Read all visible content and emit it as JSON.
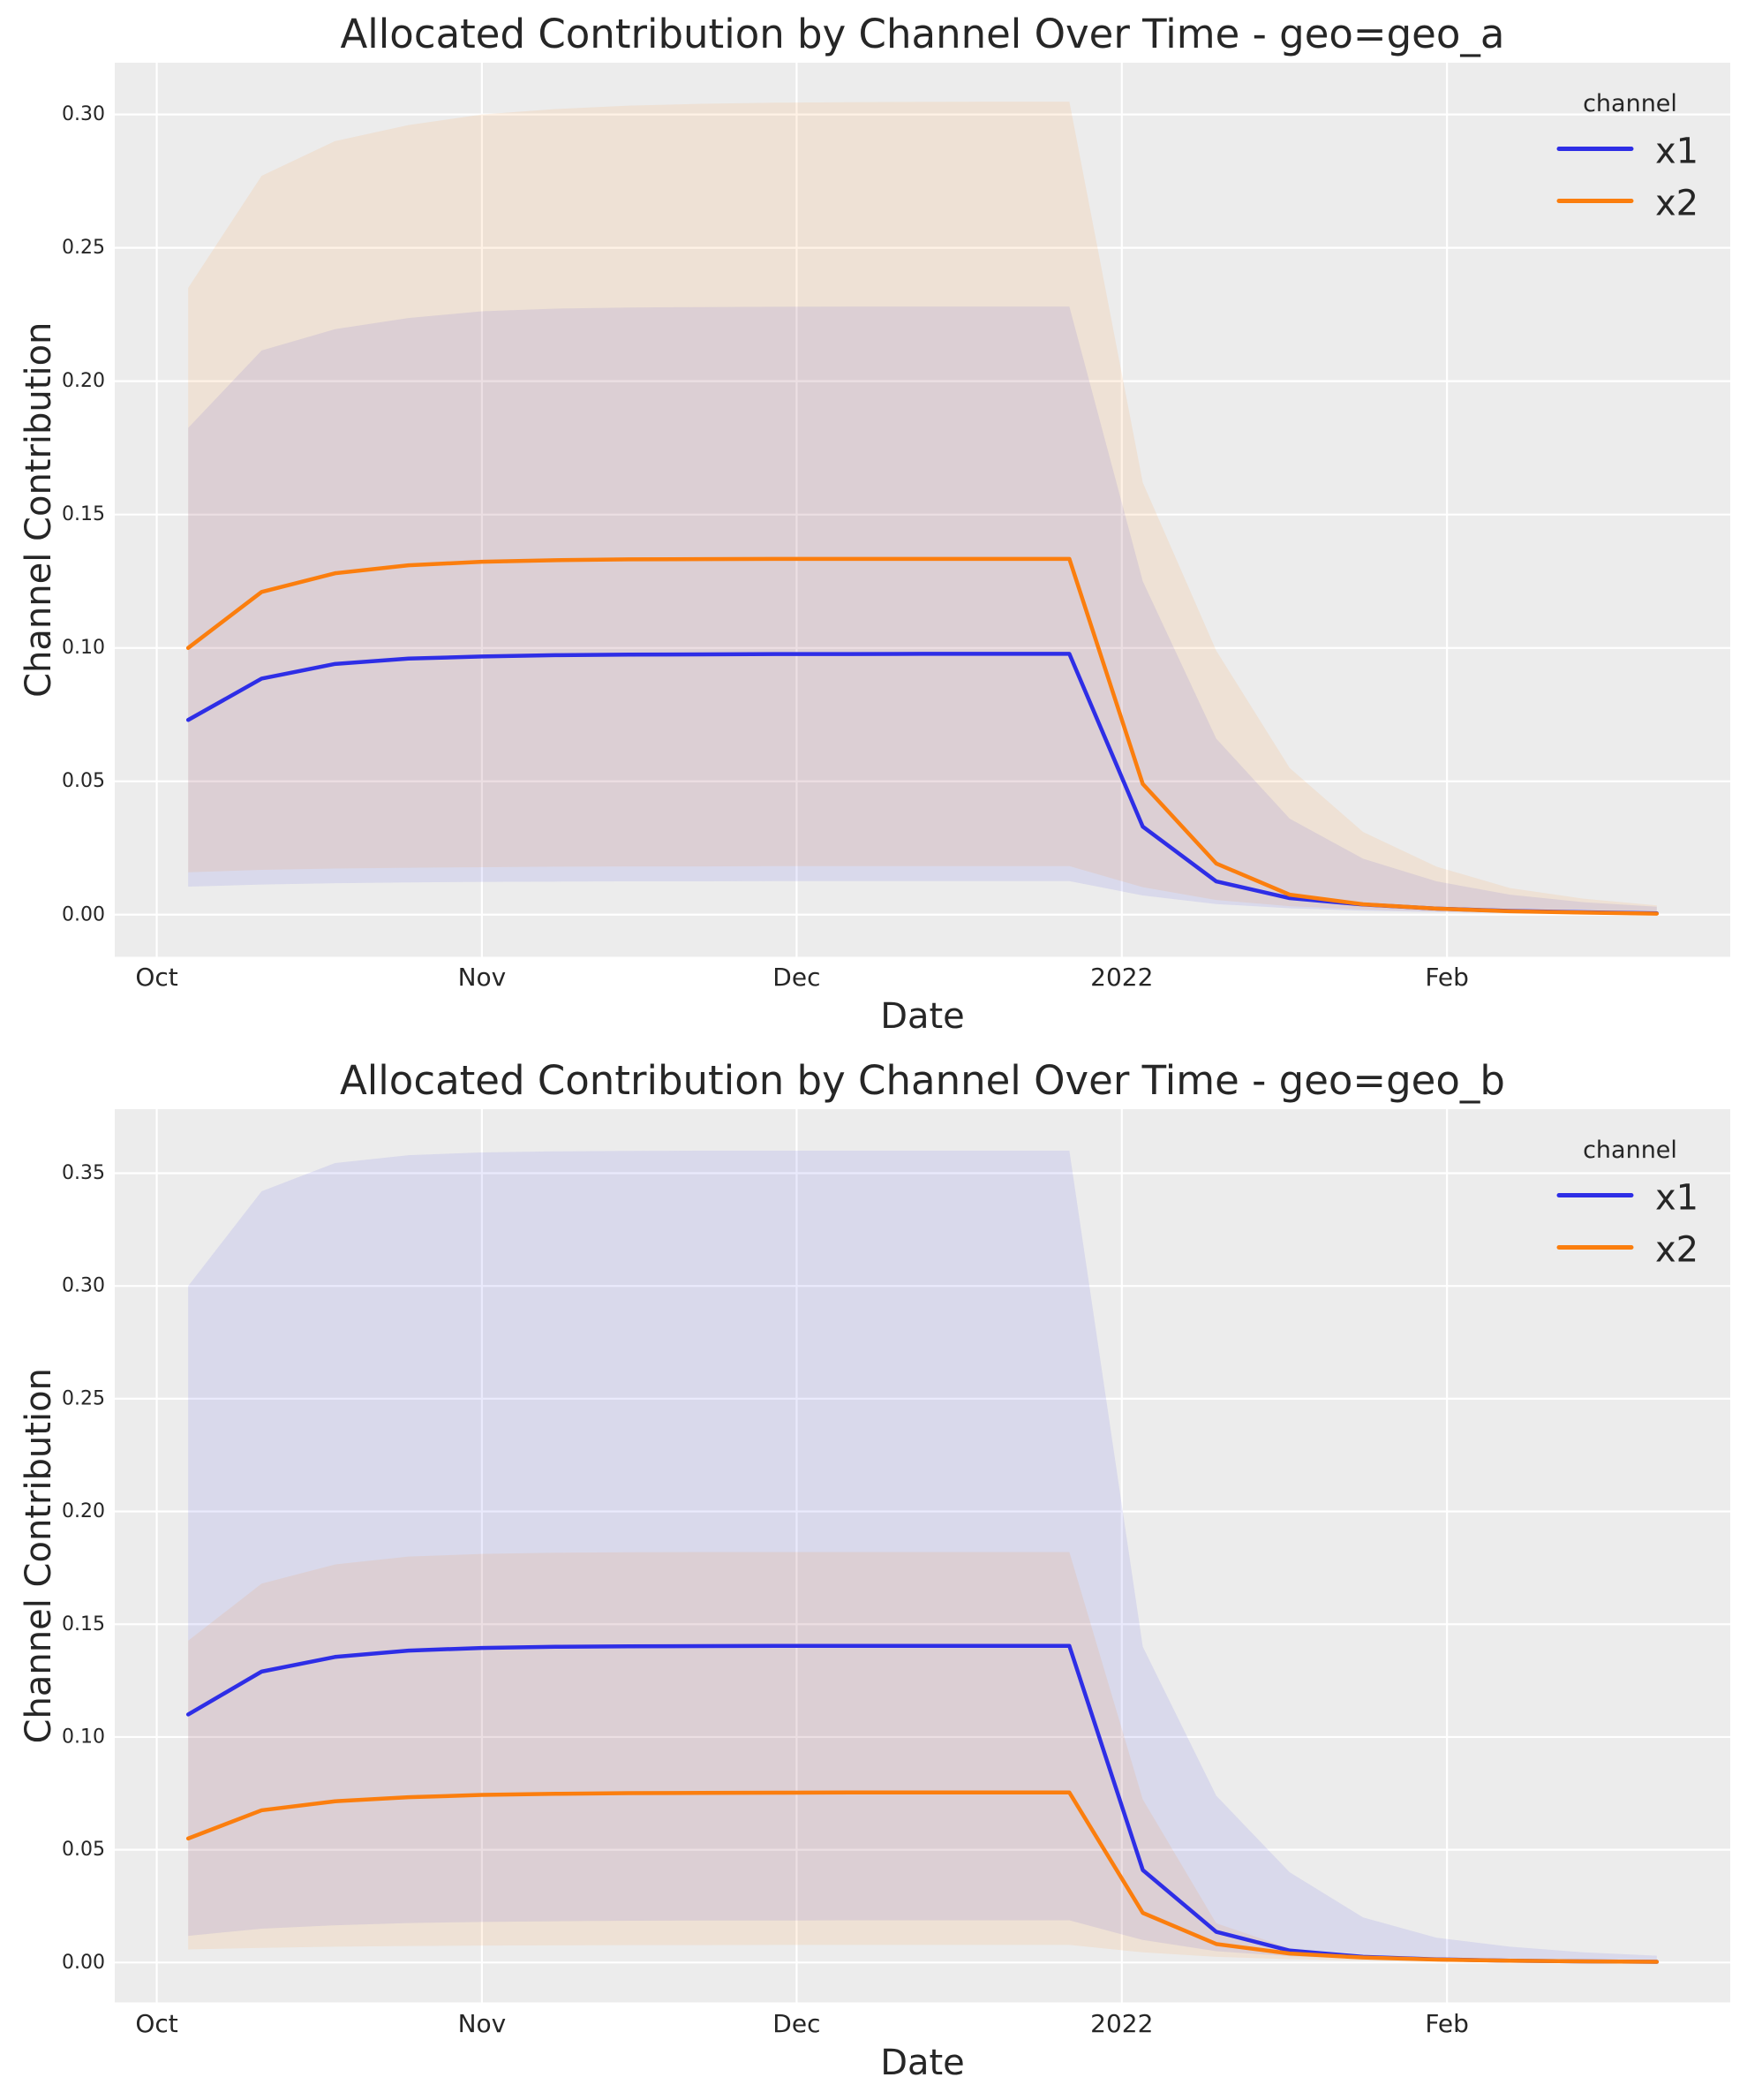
{
  "style": {
    "figure_bg": "#FFFFFF",
    "axes_bg": "#ECECEC",
    "grid_color": "#FFFFFF",
    "text_color": "#262626",
    "band_alpha": 0.1,
    "series_colors": {
      "x1": "#2E2EE6",
      "x2": "#FB7E0E"
    }
  },
  "chart_data": [
    {
      "type": "line",
      "title": "Allocated Contribution by Channel Over Time - geo=geo_a",
      "xlabel": "Date",
      "ylabel": "Channel Contribution",
      "grid": true,
      "legend": {
        "title": "channel",
        "position": "upper right"
      },
      "xlim": [
        "2021-09-27",
        "2022-02-28"
      ],
      "ylim": [
        -0.0158,
        0.3194
      ],
      "x_ticks": [
        {
          "date": "2021-10-01",
          "label": "Oct"
        },
        {
          "date": "2021-11-01",
          "label": "Nov"
        },
        {
          "date": "2021-12-01",
          "label": "Dec"
        },
        {
          "date": "2022-01-01",
          "label": "2022"
        },
        {
          "date": "2022-02-01",
          "label": "Feb"
        }
      ],
      "y_ticks": [
        {
          "value": 0.0,
          "label": "0.00"
        },
        {
          "value": 0.05,
          "label": "0.05"
        },
        {
          "value": 0.1,
          "label": "0.10"
        },
        {
          "value": 0.15,
          "label": "0.15"
        },
        {
          "value": 0.2,
          "label": "0.20"
        },
        {
          "value": 0.25,
          "label": "0.25"
        },
        {
          "value": 0.3,
          "label": "0.30"
        }
      ],
      "dates": [
        "2021-10-04",
        "2021-10-11",
        "2021-10-18",
        "2021-10-25",
        "2021-11-01",
        "2021-11-08",
        "2021-11-15",
        "2021-11-22",
        "2021-11-29",
        "2021-12-06",
        "2021-12-13",
        "2021-12-20",
        "2021-12-27",
        "2022-01-03",
        "2022-01-10",
        "2022-01-17",
        "2022-01-24",
        "2022-01-31",
        "2022-02-07",
        "2022-02-14",
        "2022-02-21"
      ],
      "series": [
        {
          "name": "x1",
          "mean": [
            0.073,
            0.0885,
            0.094,
            0.096,
            0.0968,
            0.0973,
            0.0975,
            0.0976,
            0.0977,
            0.0977,
            0.0978,
            0.0978,
            0.0978,
            0.033,
            0.0125,
            0.0062,
            0.0038,
            0.0023,
            0.0014,
            0.0009,
            0.0005
          ],
          "hdi_lower": [
            0.0105,
            0.0113,
            0.0118,
            0.0121,
            0.0123,
            0.0124,
            0.0125,
            0.0125,
            0.0126,
            0.0126,
            0.0126,
            0.0126,
            0.0126,
            0.0072,
            0.004,
            0.0024,
            0.0015,
            0.001,
            0.0006,
            0.0004,
            0.0003
          ],
          "hdi_upper": [
            0.1825,
            0.2115,
            0.2195,
            0.2237,
            0.2262,
            0.2272,
            0.2276,
            0.2278,
            0.2279,
            0.228,
            0.228,
            0.228,
            0.228,
            0.125,
            0.066,
            0.036,
            0.021,
            0.0125,
            0.0075,
            0.0047,
            0.003
          ]
        },
        {
          "name": "x2",
          "mean": [
            0.1,
            0.121,
            0.128,
            0.131,
            0.1323,
            0.1329,
            0.1332,
            0.1333,
            0.1334,
            0.1334,
            0.1334,
            0.1334,
            0.1334,
            0.049,
            0.0192,
            0.0075,
            0.0039,
            0.0023,
            0.0013,
            0.0008,
            0.0004
          ],
          "hdi_lower": [
            0.0159,
            0.0168,
            0.0173,
            0.0176,
            0.0178,
            0.018,
            0.0181,
            0.0181,
            0.0182,
            0.0182,
            0.0182,
            0.0182,
            0.0182,
            0.0103,
            0.0055,
            0.0032,
            0.002,
            0.0013,
            0.0008,
            0.0005,
            0.0003
          ],
          "hdi_upper": [
            0.235,
            0.277,
            0.29,
            0.296,
            0.3,
            0.302,
            0.3033,
            0.304,
            0.3044,
            0.3046,
            0.3047,
            0.3048,
            0.3048,
            0.162,
            0.099,
            0.055,
            0.031,
            0.018,
            0.01,
            0.006,
            0.0035
          ]
        }
      ]
    },
    {
      "type": "line",
      "title": "Allocated Contribution by Channel Over Time - geo=geo_b",
      "xlabel": "Date",
      "ylabel": "Channel Contribution",
      "grid": true,
      "legend": {
        "title": "channel",
        "position": "upper right"
      },
      "xlim": [
        "2021-09-27",
        "2022-02-28"
      ],
      "ylim": [
        -0.0177,
        0.3784
      ],
      "x_ticks": [
        {
          "date": "2021-10-01",
          "label": "Oct"
        },
        {
          "date": "2021-11-01",
          "label": "Nov"
        },
        {
          "date": "2021-12-01",
          "label": "Dec"
        },
        {
          "date": "2022-01-01",
          "label": "2022"
        },
        {
          "date": "2022-02-01",
          "label": "Feb"
        }
      ],
      "y_ticks": [
        {
          "value": 0.0,
          "label": "0.00"
        },
        {
          "value": 0.05,
          "label": "0.05"
        },
        {
          "value": 0.1,
          "label": "0.10"
        },
        {
          "value": 0.15,
          "label": "0.15"
        },
        {
          "value": 0.2,
          "label": "0.20"
        },
        {
          "value": 0.25,
          "label": "0.25"
        },
        {
          "value": 0.3,
          "label": "0.30"
        },
        {
          "value": 0.35,
          "label": "0.35"
        }
      ],
      "dates": [
        "2021-10-04",
        "2021-10-11",
        "2021-10-18",
        "2021-10-25",
        "2021-11-01",
        "2021-11-08",
        "2021-11-15",
        "2021-11-22",
        "2021-11-29",
        "2021-12-06",
        "2021-12-13",
        "2021-12-20",
        "2021-12-27",
        "2022-01-03",
        "2022-01-10",
        "2022-01-17",
        "2022-01-24",
        "2022-01-31",
        "2022-02-07",
        "2022-02-14",
        "2022-02-21"
      ],
      "series": [
        {
          "name": "x1",
          "mean": [
            0.11,
            0.129,
            0.1355,
            0.1383,
            0.1395,
            0.14,
            0.1402,
            0.1403,
            0.1404,
            0.1404,
            0.1404,
            0.1404,
            0.1404,
            0.041,
            0.0136,
            0.0053,
            0.0025,
            0.0014,
            0.0008,
            0.0005,
            0.0003
          ],
          "hdi_lower": [
            0.0118,
            0.015,
            0.0165,
            0.0175,
            0.018,
            0.0183,
            0.0185,
            0.0186,
            0.0186,
            0.0187,
            0.0187,
            0.0187,
            0.0187,
            0.01,
            0.005,
            0.0028,
            0.0016,
            0.001,
            0.0006,
            0.0004,
            0.0002
          ],
          "hdi_upper": [
            0.3,
            0.342,
            0.3545,
            0.358,
            0.3592,
            0.3597,
            0.3599,
            0.36,
            0.36,
            0.36,
            0.36,
            0.36,
            0.36,
            0.14,
            0.074,
            0.04,
            0.02,
            0.011,
            0.007,
            0.0045,
            0.003
          ]
        },
        {
          "name": "x2",
          "mean": [
            0.055,
            0.0675,
            0.0715,
            0.0733,
            0.0743,
            0.0748,
            0.0751,
            0.0752,
            0.0753,
            0.0754,
            0.0754,
            0.0754,
            0.0754,
            0.022,
            0.0082,
            0.004,
            0.0022,
            0.0013,
            0.0008,
            0.0005,
            0.0003
          ],
          "hdi_lower": [
            0.0058,
            0.0065,
            0.007,
            0.0073,
            0.0075,
            0.0076,
            0.0077,
            0.0077,
            0.0078,
            0.0078,
            0.0078,
            0.0078,
            0.0078,
            0.0045,
            0.0025,
            0.0015,
            0.0009,
            0.0006,
            0.0004,
            0.0002,
            0.0002
          ],
          "hdi_upper": [
            0.1427,
            0.168,
            0.1765,
            0.18,
            0.1812,
            0.1817,
            0.1819,
            0.182,
            0.182,
            0.182,
            0.182,
            0.182,
            0.182,
            0.0723,
            0.0174,
            0.0063,
            0.003,
            0.0016,
            0.001,
            0.0006,
            0.0004
          ]
        }
      ]
    }
  ]
}
